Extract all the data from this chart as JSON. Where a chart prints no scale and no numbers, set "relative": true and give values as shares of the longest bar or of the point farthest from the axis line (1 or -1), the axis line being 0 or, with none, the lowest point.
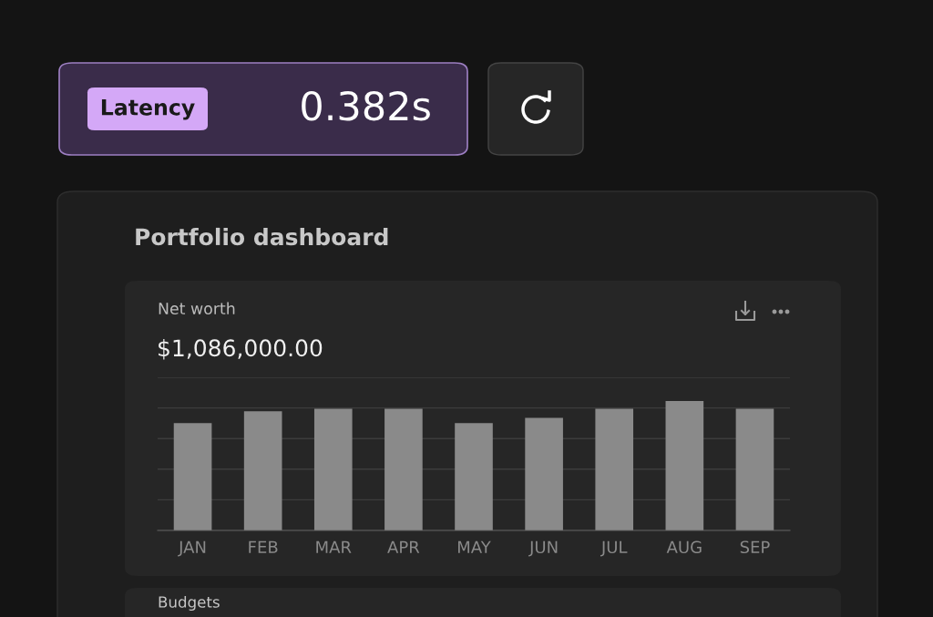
{
  "chart_data": {
    "type": "bar",
    "title": "Net worth",
    "subtitle": "$1,086,000.00",
    "categories": [
      "JAN",
      "FEB",
      "MAR",
      "APR",
      "MAY",
      "JUN",
      "JUL",
      "AUG",
      "SEP"
    ],
    "values": [
      0.83,
      0.92,
      0.94,
      0.94,
      0.83,
      0.87,
      0.94,
      1,
      0.94
    ],
    "color": "#8a8a8a",
    "relative": true,
    "grid": "y",
    "annotations": [
      "Latency",
      "0.382s",
      "Portfolio dashboard",
      "Budgets"
    ]
  }
}
